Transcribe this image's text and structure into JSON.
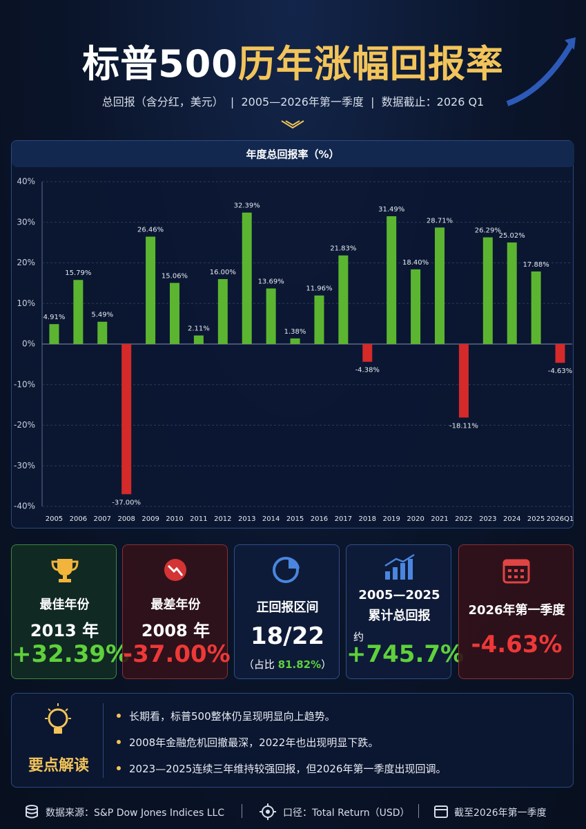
{
  "header": {
    "title_parts": [
      "标普500",
      "历年涨幅回报率"
    ],
    "subtitle": "总回报（含分红，美元）  |  2005—2026年第一季度  |  数据截止：2026 Q1"
  },
  "chart_data": {
    "type": "bar",
    "title": "年度总回报率（%）",
    "categories": [
      "2005",
      "2006",
      "2007",
      "2008",
      "2009",
      "2010",
      "2011",
      "2012",
      "2013",
      "2014",
      "2015",
      "2016",
      "2017",
      "2018",
      "2019",
      "2020",
      "2021",
      "2022",
      "2023",
      "2024",
      "2025",
      "2026Q1"
    ],
    "values": [
      4.91,
      15.79,
      5.49,
      -37.0,
      26.46,
      15.06,
      2.11,
      16.0,
      32.39,
      13.69,
      1.38,
      11.96,
      21.83,
      -4.38,
      31.49,
      18.4,
      28.71,
      -18.11,
      26.29,
      25.02,
      17.88,
      -4.63
    ],
    "value_labels": [
      "4.91%",
      "15.79%",
      "5.49%",
      "-37.00%",
      "26.46%",
      "15.06%",
      "2.11%",
      "16.00%",
      "32.39%",
      "13.69%",
      "1.38%",
      "11.96%",
      "21.83%",
      "-4.38%",
      "31.49%",
      "18.40%",
      "28.71%",
      "-18.11%",
      "26.29%",
      "25.02%",
      "17.88%",
      "-4.63%"
    ],
    "color_positive": "#5cb531",
    "color_negative": "#d42a2a",
    "ylim": [
      -40,
      40
    ],
    "yticks": [
      {
        "value": -40,
        "label": "-40%"
      },
      {
        "value": -30,
        "label": "-30%"
      },
      {
        "value": -20,
        "label": "-20%"
      },
      {
        "value": -10,
        "label": "-10%"
      },
      {
        "value": 0,
        "label": "0%"
      },
      {
        "value": 10,
        "label": "10%"
      },
      {
        "value": 20,
        "label": "20%"
      },
      {
        "value": 30,
        "label": "30%"
      },
      {
        "value": 40,
        "label": "40%"
      }
    ],
    "grid": true
  },
  "cards": [
    {
      "label": "最佳年份",
      "year": "2013 年",
      "value": "+32.39%"
    },
    {
      "label": "最差年份",
      "year": "2008 年",
      "value": "-37.00%"
    },
    {
      "label": "正回报区间",
      "value": "18/22",
      "note_prefix": "（占比",
      "note_value": "81.82%",
      "note_suffix": "）"
    },
    {
      "label_line1": "2005—2025",
      "label_line2": "累计总回报",
      "approx": "约",
      "value": "+745.7%"
    },
    {
      "label": "2026年第一季度",
      "value": "-4.63%"
    }
  ],
  "insights": {
    "title": "要点解读",
    "items": [
      "长期看，标普500整体仍呈现明显向上趋势。",
      "2008年金融危机回撤最深，2022年也出现明显下跌。",
      "2023—2025连续三年维持较强回报，但2026年第一季度出现回调。"
    ]
  },
  "footer": {
    "source": "数据来源：S&P Dow Jones Indices LLC",
    "basis": "口径：Total Return（USD）",
    "cutoff": "截至2026年第一季度"
  }
}
